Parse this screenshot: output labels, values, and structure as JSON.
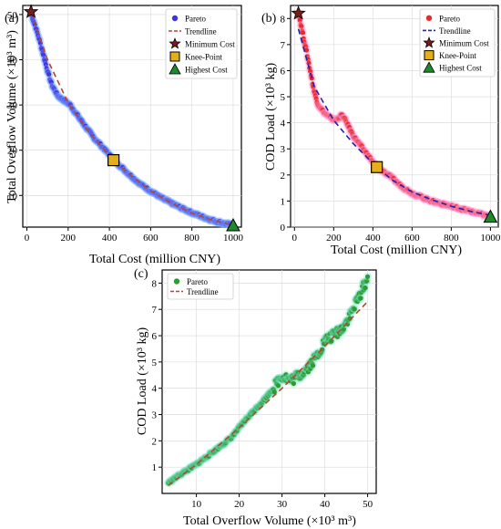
{
  "colors": {
    "pareto_a": "#3f35e0",
    "pareto_b": "#ea2a2a",
    "pareto_c": "#2f9a2f",
    "trend_red": "#b5472d",
    "trend_blue": "#2222aa",
    "minimum_star": "#7a1a1a",
    "knee_square": "#e3b01a",
    "highest_triangle": "#1f8a2c"
  },
  "chart_data": [
    {
      "panel_label": "(a)",
      "type": "scatter",
      "xlabel": "Total Cost (million CNY)",
      "ylabel": "Total Overflow Volume (×10³ m³)",
      "xlim": [
        -20,
        1040
      ],
      "ylim": [
        3,
        52
      ],
      "xticks": [
        0,
        200,
        400,
        600,
        800,
        1000
      ],
      "yticks": [
        10,
        20,
        30,
        40,
        50
      ],
      "grid": true,
      "legend_position": "top-right",
      "legend": [
        "Pareto",
        "Trendline",
        "Minimum Cost",
        "Knee-Point",
        "Highest Cost"
      ],
      "pareto": [
        [
          20,
          50.2
        ],
        [
          40,
          47.5
        ],
        [
          60,
          44.5
        ],
        [
          80,
          41
        ],
        [
          100,
          37.5
        ],
        [
          120,
          34.5
        ],
        [
          150,
          32
        ],
        [
          180,
          31
        ],
        [
          210,
          30
        ],
        [
          240,
          28
        ],
        [
          280,
          25.5
        ],
        [
          320,
          23
        ],
        [
          360,
          21
        ],
        [
          400,
          19
        ],
        [
          420,
          17.8
        ],
        [
          460,
          16.2
        ],
        [
          500,
          14.5
        ],
        [
          550,
          12.5
        ],
        [
          600,
          11
        ],
        [
          650,
          9.5
        ],
        [
          700,
          8.3
        ],
        [
          750,
          7.2
        ],
        [
          800,
          6.2
        ],
        [
          850,
          5.3
        ],
        [
          900,
          4.5
        ],
        [
          950,
          3.9
        ],
        [
          1000,
          3.4
        ]
      ],
      "trendline": [
        [
          20,
          50.5
        ],
        [
          100,
          40
        ],
        [
          200,
          30.5
        ],
        [
          300,
          24
        ],
        [
          420,
          17.8
        ],
        [
          500,
          14.6
        ],
        [
          600,
          11
        ],
        [
          700,
          8.3
        ],
        [
          800,
          6.1
        ],
        [
          900,
          4.5
        ],
        [
          1000,
          3.4
        ]
      ],
      "markers": {
        "minimum_cost": [
          20,
          50.6
        ],
        "knee_point": [
          420,
          17.8
        ],
        "highest_cost": [
          1000,
          3.4
        ]
      }
    },
    {
      "panel_label": "(b)",
      "type": "scatter",
      "xlabel": "Total Cost (million CNY)",
      "ylabel": "COD Load (×10³ kg)",
      "xlim": [
        -20,
        1040
      ],
      "ylim": [
        0,
        8.5
      ],
      "xticks": [
        0,
        200,
        400,
        600,
        800,
        1000
      ],
      "yticks": [
        0,
        1,
        2,
        3,
        4,
        5,
        6,
        7,
        8
      ],
      "grid": true,
      "legend_position": "top-right",
      "legend": [
        "Pareto",
        "Trendline",
        "Minimum Cost",
        "Knee-Point",
        "Highest Cost"
      ],
      "pareto": [
        [
          20,
          8.2
        ],
        [
          40,
          7.5
        ],
        [
          60,
          6.8
        ],
        [
          80,
          6
        ],
        [
          100,
          5.2
        ],
        [
          120,
          4.7
        ],
        [
          150,
          4.4
        ],
        [
          180,
          4.2
        ],
        [
          210,
          4.1
        ],
        [
          240,
          4.3
        ],
        [
          260,
          4.1
        ],
        [
          300,
          3.5
        ],
        [
          350,
          3
        ],
        [
          400,
          2.5
        ],
        [
          420,
          2.3
        ],
        [
          480,
          2
        ],
        [
          540,
          1.6
        ],
        [
          600,
          1.3
        ],
        [
          700,
          1
        ],
        [
          800,
          0.8
        ],
        [
          900,
          0.6
        ],
        [
          1000,
          0.4
        ]
      ],
      "trendline": [
        [
          20,
          7.6
        ],
        [
          100,
          5.4
        ],
        [
          200,
          4.1
        ],
        [
          300,
          3.2
        ],
        [
          420,
          2.3
        ],
        [
          500,
          1.8
        ],
        [
          600,
          1.35
        ],
        [
          700,
          1.05
        ],
        [
          800,
          0.8
        ],
        [
          900,
          0.6
        ],
        [
          1000,
          0.45
        ]
      ],
      "markers": {
        "minimum_cost": [
          20,
          8.2
        ],
        "knee_point": [
          420,
          2.3
        ],
        "highest_cost": [
          1000,
          0.4
        ]
      }
    },
    {
      "panel_label": "(c)",
      "type": "scatter",
      "xlabel": "Total Overflow Volume (×10³ m³)",
      "ylabel": "COD Load (×10³ kg)",
      "xlim": [
        2,
        52
      ],
      "ylim": [
        0,
        8.5
      ],
      "xticks": [
        10,
        20,
        30,
        40,
        50
      ],
      "yticks": [
        1,
        2,
        3,
        4,
        5,
        6,
        7,
        8
      ],
      "grid": true,
      "legend_position": "top-left",
      "legend": [
        "Pareto",
        "Trendline"
      ],
      "pareto": [
        [
          3.4,
          0.4
        ],
        [
          6,
          0.7
        ],
        [
          10,
          1.1
        ],
        [
          14,
          1.6
        ],
        [
          18,
          2.1
        ],
        [
          22,
          2.9
        ],
        [
          26,
          3.6
        ],
        [
          28,
          4
        ],
        [
          30,
          4.5
        ],
        [
          32,
          4.3
        ],
        [
          34,
          4.5
        ],
        [
          36,
          4.8
        ],
        [
          38,
          5.2
        ],
        [
          40,
          5.8
        ],
        [
          42,
          6
        ],
        [
          44,
          6.3
        ],
        [
          46,
          6.8
        ],
        [
          48,
          7.5
        ],
        [
          50,
          8.2
        ]
      ],
      "trendline": [
        [
          3.4,
          0.3
        ],
        [
          10,
          1.1
        ],
        [
          20,
          2.5
        ],
        [
          30,
          4
        ],
        [
          40,
          5.6
        ],
        [
          50,
          7.3
        ]
      ]
    }
  ]
}
